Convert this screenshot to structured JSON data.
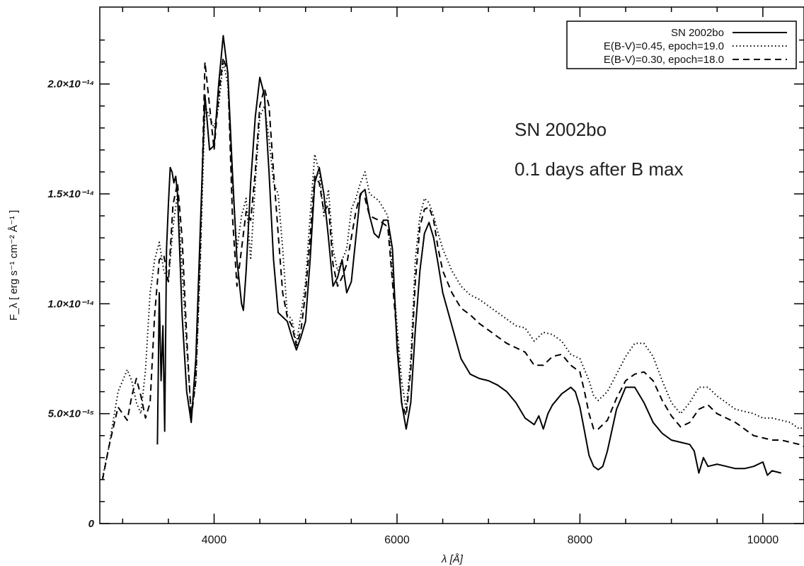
{
  "chart_data": {
    "type": "line",
    "title": "",
    "xlabel": "λ [Å]",
    "ylabel": "F_λ [ erg s⁻¹ cm⁻² Å⁻¹ ]",
    "xlim": [
      2750,
      10450
    ],
    "ylim": [
      0,
      2.35e-14
    ],
    "x_ticks": [
      {
        "value": 4000,
        "label": "4000"
      },
      {
        "value": 6000,
        "label": "6000"
      },
      {
        "value": 8000,
        "label": "8000"
      },
      {
        "value": 10000,
        "label": "10000"
      }
    ],
    "y_ticks": [
      {
        "value": 0,
        "label": "0"
      },
      {
        "value": 5e-15,
        "label": "5.0×10⁻¹⁵"
      },
      {
        "value": 1e-14,
        "label": "1.0×10⁻¹⁴"
      },
      {
        "value": 1.5e-14,
        "label": "1.5×10⁻¹⁴"
      },
      {
        "value": 2e-14,
        "label": "2.0×10⁻¹⁴"
      }
    ],
    "legend_position": "top-right",
    "annotations": [
      "SN 2002bo",
      "0.1 days after B max"
    ],
    "series": [
      {
        "name": "SN 2002bo",
        "style": "solid",
        "x": [
          3380,
          3400,
          3420,
          3440,
          3460,
          3480,
          3500,
          3520,
          3540,
          3560,
          3580,
          3600,
          3650,
          3700,
          3750,
          3800,
          3850,
          3900,
          3950,
          4000,
          4050,
          4100,
          4150,
          4200,
          4250,
          4300,
          4320,
          4350,
          4400,
          4450,
          4500,
          4550,
          4600,
          4650,
          4700,
          4750,
          4800,
          4850,
          4900,
          4950,
          5000,
          5050,
          5100,
          5150,
          5200,
          5250,
          5300,
          5350,
          5400,
          5450,
          5500,
          5550,
          5600,
          5650,
          5700,
          5750,
          5800,
          5850,
          5900,
          5950,
          6000,
          6050,
          6100,
          6150,
          6200,
          6250,
          6300,
          6350,
          6400,
          6450,
          6500,
          6600,
          6700,
          6800,
          6900,
          7000,
          7100,
          7200,
          7300,
          7400,
          7500,
          7550,
          7600,
          7650,
          7700,
          7800,
          7900,
          7950,
          8000,
          8050,
          8100,
          8150,
          8200,
          8250,
          8300,
          8400,
          8500,
          8600,
          8700,
          8800,
          8900,
          9000,
          9100,
          9200,
          9250,
          9300,
          9350,
          9400,
          9500,
          9600,
          9700,
          9800,
          9900,
          10000,
          10050,
          10100,
          10200
        ],
        "y": [
          3.6e-15,
          1.05e-14,
          6.5e-15,
          9e-15,
          4.2e-15,
          1.25e-14,
          1.45e-14,
          1.62e-14,
          1.6e-14,
          1.55e-14,
          1.58e-14,
          1.5e-14,
          9.5e-15,
          6e-15,
          4.6e-15,
          7.5e-15,
          1.35e-14,
          1.95e-14,
          1.7e-14,
          1.72e-14,
          2e-14,
          2.22e-14,
          2.05e-14,
          1.6e-14,
          1.2e-14,
          1e-14,
          9.7e-15,
          1.15e-14,
          1.55e-14,
          1.85e-14,
          2.03e-14,
          1.95e-14,
          1.6e-14,
          1.2e-14,
          9.6e-15,
          9.4e-15,
          9.2e-15,
          8.5e-15,
          7.9e-15,
          8.5e-15,
          9.2e-15,
          1.2e-14,
          1.55e-14,
          1.62e-14,
          1.5e-14,
          1.3e-14,
          1.08e-14,
          1.12e-14,
          1.2e-14,
          1.05e-14,
          1.1e-14,
          1.3e-14,
          1.5e-14,
          1.52e-14,
          1.4e-14,
          1.32e-14,
          1.3e-14,
          1.38e-14,
          1.38e-14,
          1.25e-14,
          8e-15,
          5.5e-15,
          4.3e-15,
          5.5e-15,
          8.8e-15,
          1.15e-14,
          1.32e-14,
          1.37e-14,
          1.3e-14,
          1.18e-14,
          1.05e-14,
          9e-15,
          7.5e-15,
          6.8e-15,
          6.6e-15,
          6.5e-15,
          6.3e-15,
          6e-15,
          5.5e-15,
          4.8e-15,
          4.5e-15,
          4.9e-15,
          4.3e-15,
          5e-15,
          5.4e-15,
          5.9e-15,
          6.2e-15,
          6e-15,
          5.3e-15,
          4.2e-15,
          3.1e-15,
          2.6e-15,
          2.45e-15,
          2.6e-15,
          3.3e-15,
          5.2e-15,
          6.2e-15,
          6.2e-15,
          5.5e-15,
          4.6e-15,
          4.1e-15,
          3.8e-15,
          3.7e-15,
          3.6e-15,
          3.3e-15,
          2.3e-15,
          3e-15,
          2.6e-15,
          2.7e-15,
          2.6e-15,
          2.5e-15,
          2.5e-15,
          2.6e-15,
          2.8e-15,
          2.2e-15,
          2.4e-15,
          2.3e-15
        ]
      },
      {
        "name": "E(B-V)=0.45, epoch=19.0",
        "style": "dotted",
        "x": [
          2780,
          2850,
          2950,
          3050,
          3100,
          3150,
          3200,
          3250,
          3300,
          3350,
          3400,
          3450,
          3500,
          3550,
          3600,
          3650,
          3700,
          3750,
          3800,
          3850,
          3900,
          3950,
          4000,
          4050,
          4100,
          4150,
          4200,
          4250,
          4300,
          4350,
          4400,
          4450,
          4500,
          4550,
          4600,
          4650,
          4700,
          4750,
          4800,
          4850,
          4900,
          4950,
          5000,
          5050,
          5100,
          5150,
          5200,
          5250,
          5300,
          5350,
          5400,
          5450,
          5500,
          5550,
          5600,
          5650,
          5700,
          5800,
          5900,
          6000,
          6050,
          6100,
          6150,
          6200,
          6250,
          6300,
          6350,
          6400,
          6450,
          6500,
          6600,
          6700,
          6800,
          6900,
          7000,
          7100,
          7200,
          7300,
          7400,
          7500,
          7600,
          7700,
          7800,
          7900,
          8000,
          8050,
          8100,
          8150,
          8200,
          8300,
          8400,
          8500,
          8600,
          8700,
          8800,
          8900,
          9000,
          9100,
          9200,
          9300,
          9400,
          9500,
          9600,
          9700,
          9800,
          9900,
          10000,
          10100,
          10200,
          10300,
          10400,
          10450
        ],
        "y": [
          2.1e-15,
          3.5e-15,
          6e-15,
          7e-15,
          6.5e-15,
          5.5e-15,
          5e-15,
          7e-15,
          1.05e-14,
          1.2e-14,
          1.28e-14,
          1.15e-14,
          1.1e-14,
          1.35e-14,
          1.5e-14,
          1.15e-14,
          8e-15,
          5e-15,
          6.5e-15,
          1.2e-14,
          1.9e-14,
          1.85e-14,
          1.8e-14,
          1.9e-14,
          2.1e-14,
          2e-14,
          1.55e-14,
          1.25e-14,
          1.4e-14,
          1.48e-14,
          1.2e-14,
          1.55e-14,
          1.85e-14,
          1.9e-14,
          1.75e-14,
          1.55e-14,
          1.5e-14,
          1.25e-14,
          9.5e-15,
          9.3e-15,
          8.2e-15,
          9.5e-15,
          1.1e-14,
          1.4e-14,
          1.68e-14,
          1.6e-14,
          1.4e-14,
          1.52e-14,
          1.25e-14,
          1.15e-14,
          1.2e-14,
          1.25e-14,
          1.43e-14,
          1.48e-14,
          1.55e-14,
          1.6e-14,
          1.5e-14,
          1.47e-14,
          1.4e-14,
          9e-15,
          6.5e-15,
          5.2e-15,
          7.5e-15,
          1.2e-14,
          1.4e-14,
          1.48e-14,
          1.46e-14,
          1.4e-14,
          1.32e-14,
          1.25e-14,
          1.15e-14,
          1.08e-14,
          1.04e-14,
          1.02e-14,
          9.9e-15,
          9.6e-15,
          9.3e-15,
          9e-15,
          8.9e-15,
          8.3e-15,
          8.7e-15,
          8.6e-15,
          8.3e-15,
          7.7e-15,
          7.5e-15,
          7e-15,
          6.5e-15,
          5.8e-15,
          5.6e-15,
          6e-15,
          6.8e-15,
          7.6e-15,
          8.2e-15,
          8.2e-15,
          7.6e-15,
          6.5e-15,
          5.5e-15,
          5e-15,
          5.5e-15,
          6.2e-15,
          6.2e-15,
          5.8e-15,
          5.5e-15,
          5.2e-15,
          5.1e-15,
          5e-15,
          4.8e-15,
          4.8e-15,
          4.7e-15,
          4.6e-15,
          4.3e-15,
          4.4e-15
        ]
      },
      {
        "name": "E(B-V)=0.30, epoch=18.0",
        "style": "dashed",
        "x": [
          2780,
          2850,
          2950,
          3050,
          3100,
          3150,
          3200,
          3250,
          3300,
          3350,
          3400,
          3450,
          3500,
          3550,
          3600,
          3650,
          3700,
          3750,
          3800,
          3850,
          3900,
          3950,
          4000,
          4050,
          4100,
          4150,
          4200,
          4250,
          4300,
          4350,
          4400,
          4450,
          4500,
          4550,
          4600,
          4650,
          4700,
          4750,
          4800,
          4850,
          4900,
          4950,
          5000,
          5050,
          5100,
          5150,
          5200,
          5250,
          5300,
          5350,
          5400,
          5450,
          5500,
          5550,
          5600,
          5650,
          5700,
          5800,
          5900,
          6000,
          6050,
          6100,
          6150,
          6200,
          6250,
          6300,
          6350,
          6400,
          6450,
          6500,
          6600,
          6700,
          6800,
          6900,
          7000,
          7100,
          7200,
          7300,
          7400,
          7500,
          7600,
          7700,
          7800,
          7900,
          8000,
          8050,
          8100,
          8150,
          8200,
          8300,
          8400,
          8500,
          8600,
          8700,
          8800,
          8900,
          9000,
          9100,
          9200,
          9300,
          9400,
          9500,
          9600,
          9700,
          9800,
          9900,
          10000,
          10100,
          10200,
          10300,
          10400,
          10450
        ],
        "y": [
          2e-15,
          3.5e-15,
          5.3e-15,
          4.7e-15,
          5.8e-15,
          6.6e-15,
          5.8e-15,
          4.8e-15,
          5.5e-15,
          9.5e-15,
          1.2e-14,
          1.22e-14,
          1.1e-14,
          1.45e-14,
          1.55e-14,
          1.3e-14,
          8.5e-15,
          4.8e-15,
          6.5e-15,
          1.25e-14,
          2.1e-14,
          1.9e-14,
          1.7e-14,
          1.95e-14,
          2.12e-14,
          2.05e-14,
          1.4e-14,
          1.08e-14,
          1.25e-14,
          1.42e-14,
          1.38e-14,
          1.6e-14,
          1.9e-14,
          1.98e-14,
          1.9e-14,
          1.6e-14,
          1.32e-14,
          1.05e-14,
          9.4e-15,
          9e-15,
          8.1e-15,
          8.8e-15,
          1.05e-14,
          1.3e-14,
          1.58e-14,
          1.55e-14,
          1.42e-14,
          1.45e-14,
          1.18e-14,
          1.08e-14,
          1.12e-14,
          1.18e-14,
          1.3e-14,
          1.42e-14,
          1.5e-14,
          1.48e-14,
          1.4e-14,
          1.38e-14,
          1.35e-14,
          8.5e-15,
          5.5e-15,
          4.9e-15,
          7e-15,
          1.1e-14,
          1.35e-14,
          1.43e-14,
          1.44e-14,
          1.38e-14,
          1.25e-14,
          1.15e-14,
          1.05e-14,
          9.8e-15,
          9.5e-15,
          9.1e-15,
          8.8e-15,
          8.5e-15,
          8.2e-15,
          8e-15,
          7.8e-15,
          7.2e-15,
          7.2e-15,
          7.6e-15,
          7.7e-15,
          7.2e-15,
          6.9e-15,
          6e-15,
          5e-15,
          4.3e-15,
          4.3e-15,
          4.7e-15,
          5.7e-15,
          6.5e-15,
          6.8e-15,
          6.9e-15,
          6.5e-15,
          5.6e-15,
          4.9e-15,
          4.4e-15,
          4.6e-15,
          5.2e-15,
          5.4e-15,
          5e-15,
          4.8e-15,
          4.6e-15,
          4.3e-15,
          4e-15,
          3.9e-15,
          3.8e-15,
          3.8e-15,
          3.7e-15,
          3.6e-15,
          3.5e-15
        ]
      }
    ]
  }
}
